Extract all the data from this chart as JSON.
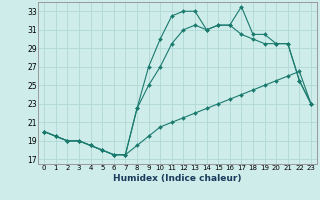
{
  "xlabel": "Humidex (Indice chaleur)",
  "background_color": "#ceecea",
  "grid_color": "#b0d8d4",
  "line_color": "#1a7a6e",
  "xlim": [
    -0.5,
    23.5
  ],
  "ylim": [
    16.5,
    34.0
  ],
  "yticks": [
    17,
    19,
    21,
    23,
    25,
    27,
    29,
    31,
    33
  ],
  "xticks": [
    0,
    1,
    2,
    3,
    4,
    5,
    6,
    7,
    8,
    9,
    10,
    11,
    12,
    13,
    14,
    15,
    16,
    17,
    18,
    19,
    20,
    21,
    22,
    23
  ],
  "series": [
    {
      "x": [
        0,
        1,
        2,
        3,
        4,
        5,
        6,
        7,
        8,
        9,
        10,
        11,
        12,
        13,
        14,
        15,
        16,
        17,
        18,
        19,
        20,
        21,
        22,
        23
      ],
      "y": [
        20.0,
        19.5,
        19.0,
        19.0,
        18.5,
        18.0,
        17.5,
        17.5,
        18.5,
        19.5,
        20.5,
        21.0,
        21.5,
        22.0,
        22.5,
        23.0,
        23.5,
        24.0,
        24.5,
        25.0,
        25.5,
        26.0,
        26.5,
        23.0
      ]
    },
    {
      "x": [
        0,
        1,
        2,
        3,
        4,
        5,
        6,
        7,
        8,
        9,
        10,
        11,
        12,
        13,
        14,
        15,
        16,
        17,
        18,
        19,
        20,
        21,
        22,
        23
      ],
      "y": [
        20.0,
        19.5,
        19.0,
        19.0,
        18.5,
        18.0,
        17.5,
        17.5,
        22.5,
        27.0,
        30.0,
        32.5,
        33.0,
        33.0,
        31.0,
        31.5,
        31.5,
        30.5,
        30.0,
        29.5,
        29.5,
        29.5,
        25.5,
        23.0
      ]
    },
    {
      "x": [
        0,
        1,
        2,
        3,
        4,
        5,
        6,
        7,
        8,
        9,
        10,
        11,
        12,
        13,
        14,
        15,
        16,
        17,
        18,
        19,
        20,
        21,
        22,
        23
      ],
      "y": [
        20.0,
        19.5,
        19.0,
        19.0,
        18.5,
        18.0,
        17.5,
        17.5,
        22.5,
        25.0,
        27.0,
        29.5,
        31.0,
        31.5,
        31.0,
        31.5,
        31.5,
        33.5,
        30.5,
        30.5,
        29.5,
        29.5,
        25.5,
        23.0
      ]
    }
  ]
}
